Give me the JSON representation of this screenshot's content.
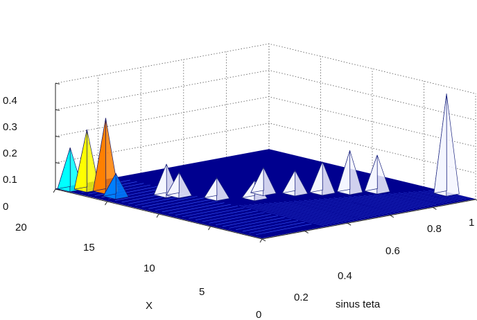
{
  "chart_data": {
    "type": "surface",
    "z_ticks": [
      "0",
      "0.1",
      "0.2",
      "0.3",
      "0.4"
    ],
    "x_ticks": [
      "0",
      "5",
      "10",
      "15",
      "20"
    ],
    "y_ticks": [
      "0",
      "0.2",
      "0.4",
      "0.6",
      "0.8",
      "1"
    ],
    "x_label": "X",
    "y_label": "sinus teta",
    "xlim": [
      0,
      20
    ],
    "ylim": [
      0,
      1
    ],
    "zlim": [
      0,
      0.4
    ],
    "grid": true,
    "colormap": [
      "#00008f",
      "#0000ff",
      "#0080ff",
      "#00ffff",
      "#80ff80",
      "#ffff00",
      "#ff8000",
      "#ff0000",
      "#800000"
    ],
    "features": [
      {
        "x": 19.2,
        "y": 0.03,
        "z": 0.16
      },
      {
        "x": 18.4,
        "y": 0.07,
        "z": 0.23
      },
      {
        "x": 17.2,
        "y": 0.1,
        "z": 0.28
      },
      {
        "x": 15.6,
        "y": 0.07,
        "z": 0.09
      },
      {
        "x": 13.8,
        "y": 0.22,
        "z": 0.12
      },
      {
        "x": 13.2,
        "y": 0.25,
        "z": 0.09
      },
      {
        "x": 11.0,
        "y": 0.32,
        "z": 0.08
      },
      {
        "x": 9.4,
        "y": 0.42,
        "z": 0.07
      },
      {
        "x": 10.2,
        "y": 0.5,
        "z": 0.1
      },
      {
        "x": 8.8,
        "y": 0.58,
        "z": 0.09
      },
      {
        "x": 7.8,
        "y": 0.66,
        "z": 0.12
      },
      {
        "x": 6.8,
        "y": 0.74,
        "z": 0.16
      },
      {
        "x": 5.8,
        "y": 0.82,
        "z": 0.14
      },
      {
        "x": 2.4,
        "y": 0.98,
        "z": 0.38
      }
    ]
  }
}
